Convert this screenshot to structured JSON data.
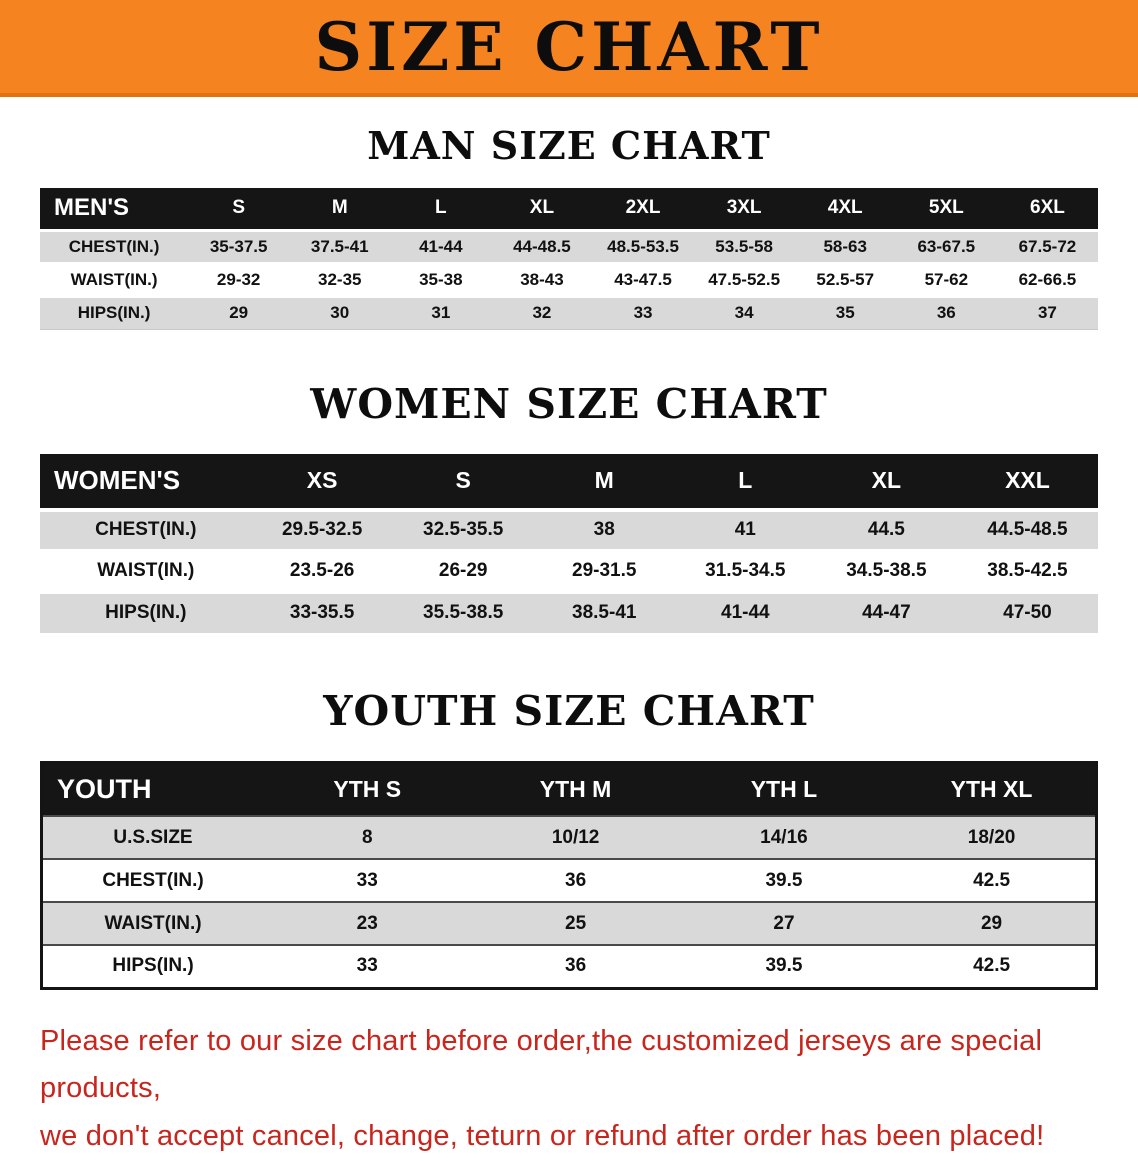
{
  "banner": {
    "title": "SIZE CHART"
  },
  "colors": {
    "banner_bg": "#f5831f",
    "header_bg": "#151515",
    "stripe": "#d9d9d9",
    "note_red": "#c8251d"
  },
  "sections": [
    {
      "id": "men",
      "title": "MAN SIZE CHART",
      "label_col": "MEN'S",
      "columns": [
        "S",
        "M",
        "L",
        "XL",
        "2XL",
        "3XL",
        "4XL",
        "5XL",
        "6XL"
      ],
      "rows": [
        {
          "label": "CHEST(IN.)",
          "values": [
            "35-37.5",
            "37.5-41",
            "41-44",
            "44-48.5",
            "48.5-53.5",
            "53.5-58",
            "58-63",
            "63-67.5",
            "67.5-72"
          ]
        },
        {
          "label": "WAIST(IN.)",
          "values": [
            "29-32",
            "32-35",
            "35-38",
            "38-43",
            "43-47.5",
            "47.5-52.5",
            "52.5-57",
            "57-62",
            "62-66.5"
          ]
        },
        {
          "label": "HIPS(IN.)",
          "values": [
            "29",
            "30",
            "31",
            "32",
            "33",
            "34",
            "35",
            "36",
            "37"
          ]
        }
      ]
    },
    {
      "id": "women",
      "title": "WOMEN SIZE CHART",
      "label_col": "WOMEN'S",
      "columns": [
        "XS",
        "S",
        "M",
        "L",
        "XL",
        "XXL"
      ],
      "rows": [
        {
          "label": "CHEST(IN.)",
          "values": [
            "29.5-32.5",
            "32.5-35.5",
            "38",
            "41",
            "44.5",
            "44.5-48.5"
          ]
        },
        {
          "label": "WAIST(IN.)",
          "values": [
            "23.5-26",
            "26-29",
            "29-31.5",
            "31.5-34.5",
            "34.5-38.5",
            "38.5-42.5"
          ]
        },
        {
          "label": "HIPS(IN.)",
          "values": [
            "33-35.5",
            "35.5-38.5",
            "38.5-41",
            "41-44",
            "44-47",
            "47-50"
          ]
        }
      ]
    },
    {
      "id": "youth",
      "title": "YOUTH SIZE CHART",
      "label_col": "YOUTH",
      "columns": [
        "YTH S",
        "YTH M",
        "YTH L",
        "YTH XL"
      ],
      "rows": [
        {
          "label": "U.S.SIZE",
          "values": [
            "8",
            "10/12",
            "14/16",
            "18/20"
          ]
        },
        {
          "label": "CHEST(IN.)",
          "values": [
            "33",
            "36",
            "39.5",
            "42.5"
          ]
        },
        {
          "label": "WAIST(IN.)",
          "values": [
            "23",
            "25",
            "27",
            "29"
          ]
        },
        {
          "label": "HIPS(IN.)",
          "values": [
            "33",
            "36",
            "39.5",
            "42.5"
          ]
        }
      ]
    }
  ],
  "footer": {
    "line1": "Please refer to our size chart before order,the customized jerseys are special products,",
    "line2": "we don't accept cancel, change, teturn or refund after order has been placed!"
  }
}
